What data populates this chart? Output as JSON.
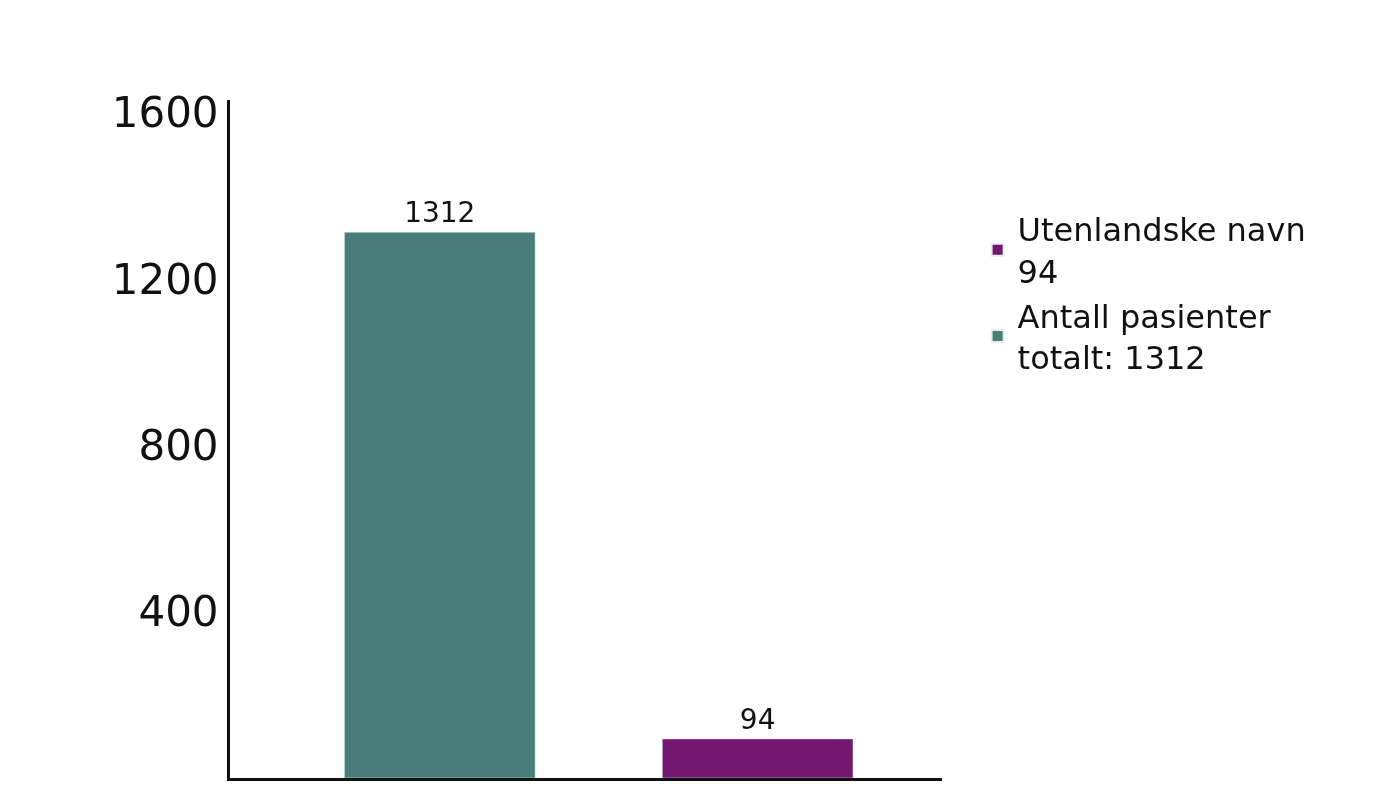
{
  "chart_data": {
    "type": "bar",
    "categories": [
      null,
      null
    ],
    "series": [
      {
        "name": "Utenlandske navn\n94",
        "color": "#74176f",
        "values": [
          null,
          94
        ]
      },
      {
        "name": "Antall pasienter\ntotalt: 1312",
        "color": "#487d78",
        "values": [
          1312,
          null
        ]
      }
    ],
    "ylim": [
      0,
      1630
    ],
    "yticks": [
      400,
      800,
      1200,
      1600
    ],
    "legend": "right",
    "data_labels": true
  }
}
